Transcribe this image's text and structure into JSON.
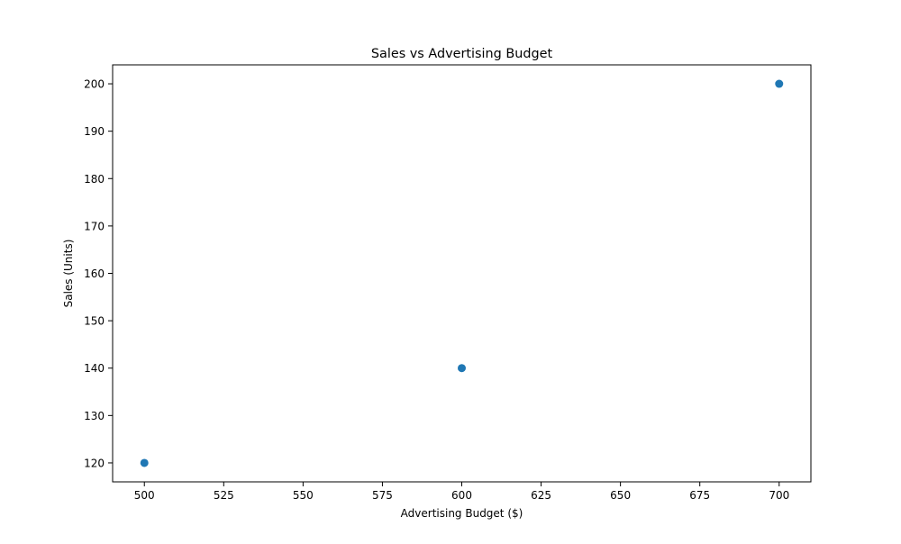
{
  "chart_data": {
    "type": "scatter",
    "title": "Sales vs Advertising Budget",
    "xlabel": "Advertising Budget ($)",
    "ylabel": "Sales (Units)",
    "xlim": [
      490,
      710
    ],
    "ylim": [
      116,
      204
    ],
    "x_ticks": [
      500,
      525,
      550,
      575,
      600,
      625,
      650,
      675,
      700
    ],
    "y_ticks": [
      120,
      130,
      140,
      150,
      160,
      170,
      180,
      190,
      200
    ],
    "grid": false,
    "marker_color": "#1f77b4",
    "points": [
      {
        "x": 500,
        "y": 120
      },
      {
        "x": 600,
        "y": 140
      },
      {
        "x": 700,
        "y": 200
      }
    ]
  }
}
